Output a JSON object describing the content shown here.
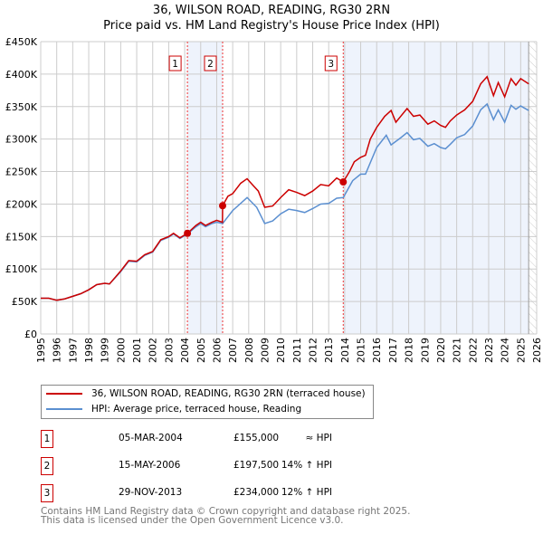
{
  "chart_data": {
    "type": "line",
    "title": "36, WILSON ROAD, READING, RG30 2RN",
    "subtitle": "Price paid vs. HM Land Registry's House Price Index (HPI)",
    "xlim": [
      1995,
      2026
    ],
    "ylim": [
      0,
      450000
    ],
    "x_ticks": [
      "1995",
      "1996",
      "1997",
      "1998",
      "1999",
      "2000",
      "2001",
      "2002",
      "2003",
      "2004",
      "2005",
      "2006",
      "2007",
      "2008",
      "2009",
      "2010",
      "2011",
      "2012",
      "2013",
      "2014",
      "2015",
      "2016",
      "2017",
      "2018",
      "2019",
      "2020",
      "2021",
      "2022",
      "2023",
      "2024",
      "2025",
      "2026"
    ],
    "y_ticks": [
      {
        "v": 0,
        "l": "£0"
      },
      {
        "v": 50000,
        "l": "£50K"
      },
      {
        "v": 100000,
        "l": "£100K"
      },
      {
        "v": 150000,
        "l": "£150K"
      },
      {
        "v": 200000,
        "l": "£200K"
      },
      {
        "v": 250000,
        "l": "£250K"
      },
      {
        "v": 300000,
        "l": "£300K"
      },
      {
        "v": 350000,
        "l": "£350K"
      },
      {
        "v": 400000,
        "l": "£400K"
      },
      {
        "v": 450000,
        "l": "£450K"
      }
    ],
    "grid": true,
    "series": [
      {
        "name": "36, WILSON ROAD, READING, RG30 2RN (terraced house)",
        "color": "#cc0000",
        "points": [
          [
            1995,
            55
          ],
          [
            1995.5,
            55
          ],
          [
            1996,
            52
          ],
          [
            1996.5,
            54
          ],
          [
            1997,
            58
          ],
          [
            1997.5,
            62
          ],
          [
            1998,
            68
          ],
          [
            1998.5,
            76
          ],
          [
            1999,
            78
          ],
          [
            1999.3,
            77
          ],
          [
            2000,
            97
          ],
          [
            2000.5,
            113
          ],
          [
            2001,
            112
          ],
          [
            2001.5,
            122
          ],
          [
            2002,
            127
          ],
          [
            2002.5,
            145
          ],
          [
            2003,
            150
          ],
          [
            2003.3,
            155
          ],
          [
            2003.7,
            148
          ],
          [
            2004.17,
            155
          ],
          [
            2004.7,
            167
          ],
          [
            2005,
            172
          ],
          [
            2005.3,
            167
          ],
          [
            2005.7,
            172
          ],
          [
            2006,
            175
          ],
          [
            2006.36,
            172
          ],
          [
            2006.37,
            197.5
          ],
          [
            2006.7,
            212
          ],
          [
            2007,
            216
          ],
          [
            2007.5,
            232
          ],
          [
            2007.9,
            239
          ],
          [
            2008.3,
            228
          ],
          [
            2008.6,
            220
          ],
          [
            2009,
            195
          ],
          [
            2009.5,
            197
          ],
          [
            2010,
            210
          ],
          [
            2010.5,
            222
          ],
          [
            2011,
            218
          ],
          [
            2011.5,
            213
          ],
          [
            2012,
            220
          ],
          [
            2012.5,
            230
          ],
          [
            2013,
            228
          ],
          [
            2013.5,
            240
          ],
          [
            2013.91,
            234
          ],
          [
            2014.3,
            250
          ],
          [
            2014.6,
            265
          ],
          [
            2015,
            272
          ],
          [
            2015.3,
            275
          ],
          [
            2015.6,
            300
          ],
          [
            2016,
            318
          ],
          [
            2016.5,
            335
          ],
          [
            2016.9,
            344
          ],
          [
            2017.2,
            326
          ],
          [
            2017.5,
            335
          ],
          [
            2017.9,
            347
          ],
          [
            2018.3,
            335
          ],
          [
            2018.7,
            337
          ],
          [
            2019.2,
            323
          ],
          [
            2019.6,
            328
          ],
          [
            2020,
            321
          ],
          [
            2020.3,
            318
          ],
          [
            2020.6,
            328
          ],
          [
            2021,
            337
          ],
          [
            2021.5,
            345
          ],
          [
            2022,
            358
          ],
          [
            2022.5,
            385
          ],
          [
            2022.9,
            396
          ],
          [
            2023.3,
            367
          ],
          [
            2023.6,
            387
          ],
          [
            2024,
            365
          ],
          [
            2024.4,
            393
          ],
          [
            2024.7,
            383
          ],
          [
            2025,
            393
          ],
          [
            2025.5,
            385
          ]
        ]
      },
      {
        "name": "HPI: Average price, terraced house, Reading",
        "color": "#5b8fd0",
        "points": [
          [
            1995,
            55
          ],
          [
            1995.5,
            55
          ],
          [
            1996,
            52
          ],
          [
            1996.5,
            54
          ],
          [
            1997,
            58
          ],
          [
            1997.5,
            62
          ],
          [
            1998,
            68
          ],
          [
            1998.5,
            76
          ],
          [
            1999,
            78
          ],
          [
            1999.3,
            77
          ],
          [
            2000,
            96
          ],
          [
            2000.5,
            112
          ],
          [
            2001,
            111
          ],
          [
            2001.5,
            121
          ],
          [
            2002,
            126
          ],
          [
            2002.5,
            144
          ],
          [
            2003,
            149
          ],
          [
            2003.3,
            154
          ],
          [
            2003.7,
            147
          ],
          [
            2004.17,
            154
          ],
          [
            2004.7,
            165
          ],
          [
            2005,
            170
          ],
          [
            2005.3,
            165
          ],
          [
            2005.7,
            170
          ],
          [
            2006,
            172
          ],
          [
            2006.37,
            170
          ],
          [
            2007,
            190
          ],
          [
            2007.9,
            210
          ],
          [
            2008.5,
            195
          ],
          [
            2009,
            170
          ],
          [
            2009.5,
            174
          ],
          [
            2010,
            185
          ],
          [
            2010.5,
            192
          ],
          [
            2011,
            190
          ],
          [
            2011.5,
            187
          ],
          [
            2012,
            193
          ],
          [
            2012.5,
            200
          ],
          [
            2013,
            201
          ],
          [
            2013.5,
            209
          ],
          [
            2013.91,
            210
          ],
          [
            2014.5,
            236
          ],
          [
            2015,
            246
          ],
          [
            2015.3,
            246
          ],
          [
            2016,
            287
          ],
          [
            2016.6,
            306
          ],
          [
            2016.9,
            291
          ],
          [
            2017.5,
            302
          ],
          [
            2017.9,
            310
          ],
          [
            2018.3,
            299
          ],
          [
            2018.7,
            301
          ],
          [
            2019.2,
            289
          ],
          [
            2019.6,
            293
          ],
          [
            2020,
            287
          ],
          [
            2020.3,
            285
          ],
          [
            2020.6,
            292
          ],
          [
            2021,
            302
          ],
          [
            2021.5,
            307
          ],
          [
            2022,
            320
          ],
          [
            2022.5,
            345
          ],
          [
            2022.9,
            354
          ],
          [
            2023.3,
            330
          ],
          [
            2023.6,
            345
          ],
          [
            2024,
            326
          ],
          [
            2024.4,
            352
          ],
          [
            2024.7,
            346
          ],
          [
            2025,
            351
          ],
          [
            2025.5,
            344
          ]
        ]
      }
    ],
    "transactions": [
      {
        "n": "1",
        "x": 2004.17,
        "price": 155000,
        "date": "05-MAR-2004",
        "price_label": "£155,000",
        "hpi": "≈ HPI"
      },
      {
        "n": "2",
        "x": 2006.37,
        "price": 197500,
        "date": "15-MAY-2006",
        "price_label": "£197,500",
        "hpi": "14% ↑ HPI"
      },
      {
        "n": "3",
        "x": 2013.91,
        "price": 234000,
        "date": "29-NOV-2013",
        "price_label": "£234,000",
        "hpi": "12% ↑ HPI"
      }
    ],
    "shaded": [
      [
        2004.17,
        2006.37
      ],
      [
        2013.91,
        2025.5
      ]
    ],
    "hatched_from": 2025.5,
    "legend_position": "below"
  },
  "footer": {
    "line1": "Contains HM Land Registry data © Crown copyright and database right 2025.",
    "line2": "This data is licensed under the Open Government Licence v3.0."
  }
}
